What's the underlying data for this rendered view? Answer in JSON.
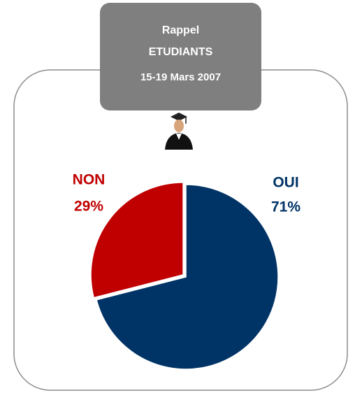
{
  "chart_data": {
    "type": "pie",
    "title": "Rappel ETUDIANTS",
    "subtitle": "15-19 Mars 2007",
    "categories": [
      "OUI",
      "NON"
    ],
    "values": [
      71,
      29
    ],
    "value_labels": [
      "71%",
      "29%"
    ],
    "colors": [
      "#003366",
      "#c00000"
    ]
  }
}
